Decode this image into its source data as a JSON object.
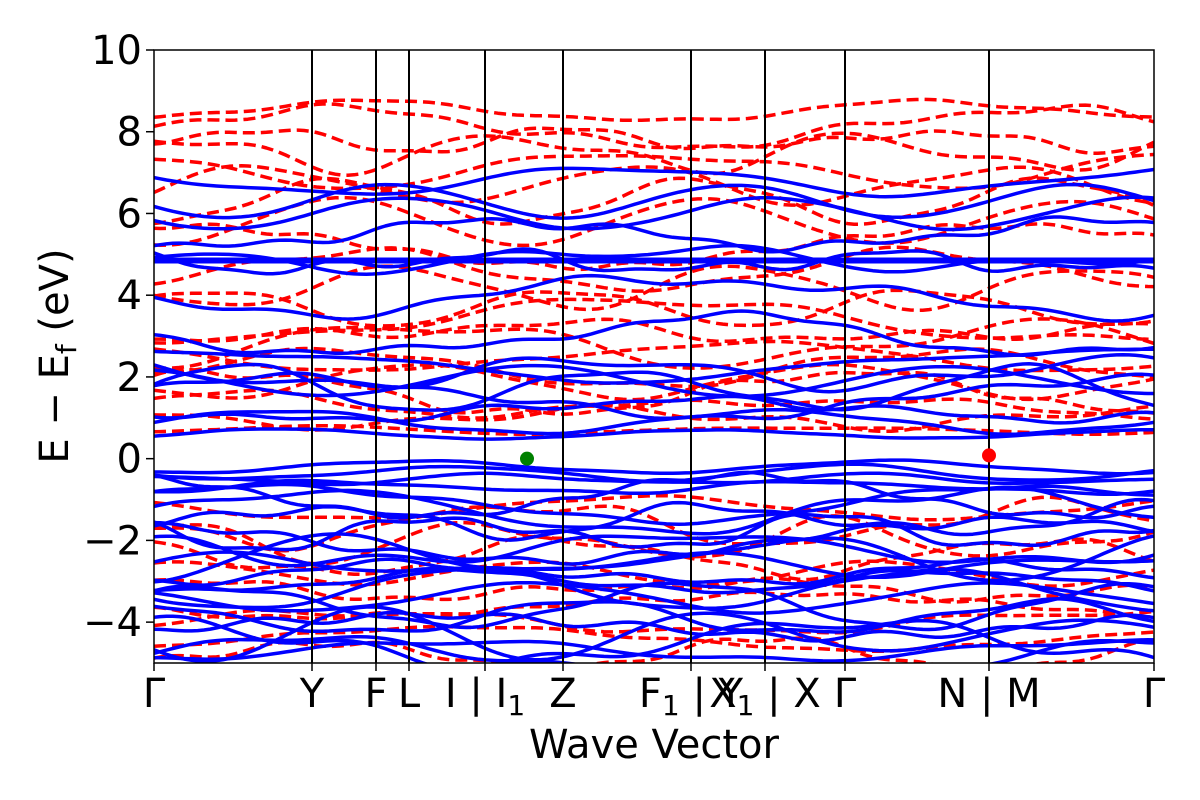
{
  "chart_data": {
    "type": "line",
    "title": "",
    "xlabel": "Wave Vector",
    "ylabel": "E − E_f (eV)",
    "ylabel_parts": {
      "main": "E − E",
      "sub": "f",
      "unit": " (eV)"
    },
    "ylim": [
      -5,
      10
    ],
    "yticks": [
      {
        "value": -4,
        "label": "−4"
      },
      {
        "value": -2,
        "label": "−2"
      },
      {
        "value": 0,
        "label": "0"
      },
      {
        "value": 2,
        "label": "2"
      },
      {
        "value": 4,
        "label": "4"
      },
      {
        "value": 6,
        "label": "6"
      },
      {
        "value": 8,
        "label": "8"
      },
      {
        "value": 10,
        "label": "10"
      }
    ],
    "xlim": [
      0,
      1
    ],
    "kpoints": [
      {
        "pos": 0.0,
        "label": "Γ"
      },
      {
        "pos": 0.158,
        "label": "Y"
      },
      {
        "pos": 0.222,
        "label": "F"
      },
      {
        "pos": 0.255,
        "label": "L"
      },
      {
        "pos": 0.331,
        "label": "I | I",
        "sub": "1"
      },
      {
        "pos": 0.409,
        "label": "Z"
      },
      {
        "pos": 0.537,
        "label": "F",
        "sub": "1",
        "tail": " | Y"
      },
      {
        "pos": 0.611,
        "label": "X",
        "sub": "1",
        "tail": " | X"
      },
      {
        "pos": 0.691,
        "label": "Γ"
      },
      {
        "pos": 0.835,
        "label": "N | M"
      },
      {
        "pos": 1.0,
        "label": "Γ"
      }
    ],
    "grid": false,
    "legend": "none",
    "colors": {
      "spin_up": "#0000ff",
      "spin_down": "#ff0000",
      "vbm": "#008000",
      "cbm": "#ff0000"
    },
    "series": [
      {
        "style": "solid",
        "color": "#0000ff",
        "values": [
          -4.9,
          -4.7,
          -4.5,
          -4.3,
          -4.1,
          -3.9,
          -3.6,
          -3.4,
          -3.2,
          -3.0,
          -2.8,
          -2.6,
          -2.4,
          -2.2,
          -2.0,
          -1.8,
          -1.5,
          -1.3,
          -1.1,
          -0.9,
          -0.7,
          -0.5,
          -0.35,
          -0.2,
          0.6,
          0.9,
          1.2,
          1.5,
          1.7,
          1.9,
          2.1,
          2.3,
          3.0,
          4.0,
          4.8,
          4.9,
          5.5,
          6.0,
          6.3,
          6.8
        ]
      },
      {
        "style": "dashed",
        "color": "#ff0000",
        "values": [
          -4.8,
          -4.4,
          -4.0,
          -3.6,
          -3.2,
          -2.8,
          -2.4,
          -2.0,
          -1.6,
          -1.2,
          0.7,
          1.0,
          1.3,
          1.6,
          1.9,
          2.2,
          2.5,
          2.8,
          3.1,
          3.4,
          3.7,
          4.2,
          4.6,
          5.2,
          5.8,
          6.3,
          6.7,
          7.1,
          7.5,
          7.8,
          8.1,
          8.5
        ]
      }
    ],
    "markers": [
      {
        "x": 0.373,
        "y": 0.0,
        "color": "#008000",
        "label": "VBM"
      },
      {
        "x": 0.835,
        "y": 0.08,
        "color": "#ff0000",
        "label": "CBM"
      }
    ]
  }
}
